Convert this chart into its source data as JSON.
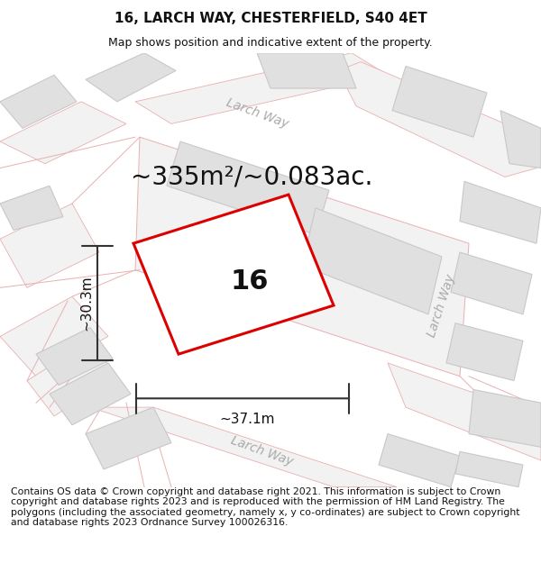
{
  "title": "16, LARCH WAY, CHESTERFIELD, S40 4ET",
  "subtitle": "Map shows position and indicative extent of the property.",
  "area_text": "~335m²/~0.083ac.",
  "width_label": "~37.1m",
  "height_label": "~30.3m",
  "number_label": "16",
  "footer_text": "Contains OS data © Crown copyright and database right 2021. This information is subject to Crown copyright and database rights 2023 and is reproduced with the permission of HM Land Registry. The polygons (including the associated geometry, namely x, y co-ordinates) are subject to Crown copyright and database rights 2023 Ordnance Survey 100026316.",
  "bg_color": "#ffffff",
  "map_bg_color": "#ffffff",
  "road_fill": "#f2f2f2",
  "road_line": "#e8b0b0",
  "building_fill": "#e0e0e0",
  "building_line": "#c8c8c8",
  "plot_edge": "#dd0000",
  "plot_fill": "#ffffff",
  "dim_color": "#333333",
  "text_color": "#111111",
  "road_label_color": "#aaaaaa",
  "title_fontsize": 11,
  "subtitle_fontsize": 9,
  "area_fontsize": 20,
  "dim_fontsize": 11,
  "number_fontsize": 22,
  "footer_fontsize": 7.8,
  "road_label_fontsize": 10
}
